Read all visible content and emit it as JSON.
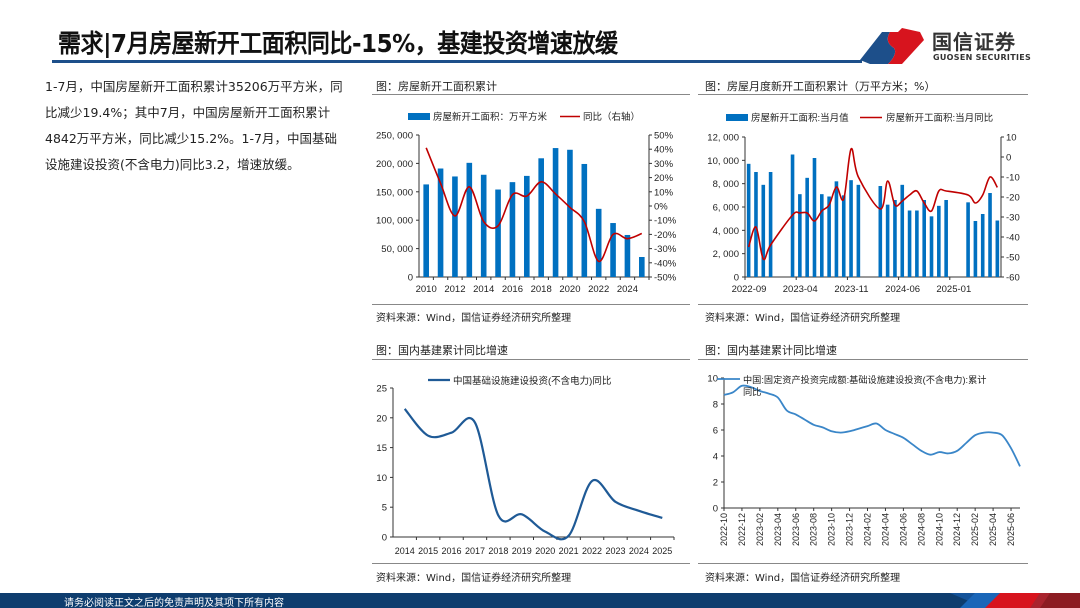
{
  "header": {
    "title": "需求|7月房屋新开工面积同比-15%，基建投资增速放缓",
    "logo_cn": "国信证券",
    "logo_en": "GUOSEN SECURITIES"
  },
  "body_text": "1-7月，中国房屋新开工面积累计35206万平方米，同比减少19.4%；其中7月，中国房屋新开工面积累计4842万平方米，同比减少15.2%。1-7月，中国基础设施建设投资(不含电力)同比3.2，增速放缓。",
  "footer": {
    "disclaimer": "请务必阅读正文之后的免责声明及其项下所有内容"
  },
  "colors": {
    "bar": "#0070c0",
    "red_line": "#c00000",
    "dark_blue_line": "#1f5a96",
    "light_blue_line": "#3a86c8",
    "brand_blue": "#0e3d6e",
    "brand_red": "#d7141e"
  },
  "panels": [
    {
      "title": "图：房屋新开工面积累计",
      "source": "资料来源：Wind，国信证券经济研究所整理"
    },
    {
      "title": "图：房屋月度新开工面积累计（万平方米；%）",
      "source": "资料来源：Wind，国信证券经济研究所整理"
    },
    {
      "title": "图：国内基建累计同比增速",
      "source": "资料来源：Wind，国信证券经济研究所整理"
    },
    {
      "title": "图：国内基建累计同比增速",
      "source": "资料来源：Wind，国信证券经济研究所整理"
    }
  ],
  "chart_data": [
    {
      "type": "bar+line",
      "categories": [
        "2010",
        "2011",
        "2012",
        "2013",
        "2014",
        "2015",
        "2016",
        "2017",
        "2018",
        "2019",
        "2020",
        "2021",
        "2022",
        "2023",
        "2024",
        "2025"
      ],
      "x_tick_labels": [
        "2010",
        "2012",
        "2014",
        "2016",
        "2018",
        "2020",
        "2022",
        "2024"
      ],
      "series": [
        {
          "name": "房屋新开工面积：万平方米",
          "type": "bar",
          "axis": "left",
          "values": [
            163000,
            191000,
            177000,
            201000,
            180000,
            154000,
            167000,
            178000,
            209000,
            227000,
            224000,
            199000,
            120000,
            95000,
            74000,
            35206
          ]
        },
        {
          "name": "同比（右轴）",
          "type": "line",
          "axis": "right",
          "values": [
            41,
            16,
            -7,
            13.5,
            -11,
            -14,
            8,
            7,
            17,
            8.5,
            -1,
            -11,
            -39,
            -20,
            -23,
            -19.4
          ]
        }
      ],
      "ylim_left": [
        0,
        250000
      ],
      "ystep_left": 50000,
      "ylim_right": [
        -50,
        50
      ],
      "ystep_right": 10,
      "right_unit": "%",
      "legend": "top",
      "grid": false
    },
    {
      "type": "bar+line",
      "categories": [
        "2022-09",
        "2022-10",
        "2022-11",
        "2022-12",
        "2023-01",
        "2023-02",
        "2023-03",
        "2023-04",
        "2023-05",
        "2023-06",
        "2023-07",
        "2023-08",
        "2023-09",
        "2023-10",
        "2023-11",
        "2023-12",
        "2024-01",
        "2024-02",
        "2024-03",
        "2024-04",
        "2024-05",
        "2024-06",
        "2024-07",
        "2024-08",
        "2024-09",
        "2024-10",
        "2024-11",
        "2024-12",
        "2025-01",
        "2025-02",
        "2025-03",
        "2025-04",
        "2025-05",
        "2025-06",
        "2025-07"
      ],
      "x_tick_labels": [
        "2022-09",
        "2023-04",
        "2023-11",
        "2024-06",
        "2025-01"
      ],
      "series": [
        {
          "name": "房屋新开工面积:当月值",
          "type": "bar",
          "axis": "left",
          "values": [
            9700,
            9000,
            7900,
            9000,
            null,
            null,
            10500,
            7100,
            8500,
            10200,
            7100,
            6900,
            8200,
            7000,
            8300,
            7900,
            null,
            null,
            7800,
            6200,
            6600,
            7900,
            5700,
            5700,
            6600,
            5200,
            6100,
            6600,
            null,
            null,
            6400,
            4800,
            5400,
            7200,
            4842
          ]
        },
        {
          "name": "房屋新开工面积:当月同比",
          "type": "line",
          "axis": "right",
          "values": [
            -45,
            -35,
            -51,
            -44,
            null,
            null,
            -29,
            -28,
            -28,
            -32,
            -27,
            -24,
            -15,
            -21,
            4,
            -10,
            null,
            null,
            -26,
            -12,
            -24,
            -22,
            -19,
            -17,
            -23,
            -27,
            -17,
            -17,
            null,
            null,
            -19,
            -23,
            -19,
            -10,
            -15.2
          ]
        }
      ],
      "ylim_left": [
        0,
        12000
      ],
      "ystep_left": 2000,
      "ylim_right": [
        -60,
        10
      ],
      "ystep_right": 10,
      "right_unit": "",
      "legend": "top",
      "grid": false
    },
    {
      "type": "line",
      "categories": [
        "2014",
        "2015",
        "2016",
        "2017",
        "2018",
        "2019",
        "2020",
        "2021",
        "2022",
        "2023",
        "2024",
        "2025"
      ],
      "series": [
        {
          "name": "中国基础设施建设投资(不含电力)同比",
          "values": [
            21.5,
            17,
            17.5,
            19.2,
            3.6,
            3.8,
            0.9,
            0.2,
            9.4,
            5.9,
            4.4,
            3.2
          ]
        }
      ],
      "ylim": [
        0,
        25
      ],
      "ystep": 5,
      "legend": "top",
      "grid": false
    },
    {
      "type": "line",
      "categories": [
        "2022-10",
        "2022-11",
        "2022-12",
        "2023-01",
        "2023-02",
        "2023-03",
        "2023-04",
        "2023-05",
        "2023-06",
        "2023-07",
        "2023-08",
        "2023-09",
        "2023-10",
        "2023-11",
        "2023-12",
        "2024-01",
        "2024-02",
        "2024-03",
        "2024-04",
        "2024-05",
        "2024-06",
        "2024-07",
        "2024-08",
        "2024-09",
        "2024-10",
        "2024-11",
        "2024-12",
        "2025-01",
        "2025-02",
        "2025-03",
        "2025-04",
        "2025-05",
        "2025-06",
        "2025-07"
      ],
      "x_tick_labels": [
        "2022-10",
        "2022-12",
        "2023-02",
        "2023-04",
        "2023-06",
        "2023-08",
        "2023-10",
        "2023-12",
        "2024-02",
        "2024-04",
        "2024-06",
        "2024-08",
        "2024-10",
        "2024-12",
        "2025-02",
        "2025-04",
        "2025-06"
      ],
      "series": [
        {
          "name": "中国:固定资产投资完成额:基础设施建设投资(不含电力):累计同比",
          "values": [
            8.7,
            8.9,
            9.4,
            9.3,
            9.0,
            8.8,
            8.5,
            7.5,
            7.2,
            6.8,
            6.4,
            6.2,
            5.9,
            5.8,
            5.9,
            6.1,
            6.3,
            6.5,
            6.0,
            5.7,
            5.4,
            4.9,
            4.4,
            4.1,
            4.3,
            4.2,
            4.4,
            5.0,
            5.6,
            5.8,
            5.8,
            5.6,
            4.6,
            3.2
          ]
        }
      ],
      "ylim": [
        0,
        10
      ],
      "ystep": 2,
      "legend": "top-left",
      "grid": false
    }
  ]
}
